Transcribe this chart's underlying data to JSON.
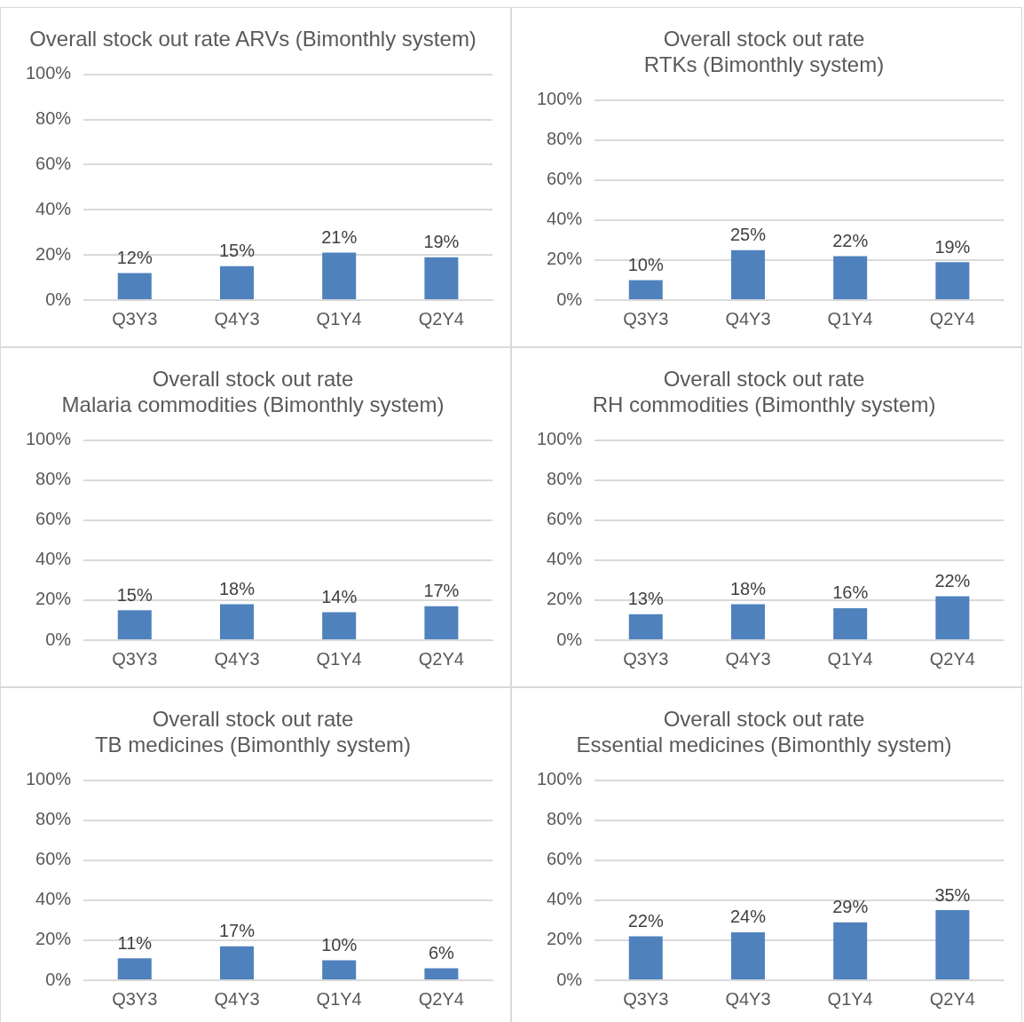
{
  "chart_data": [
    {
      "type": "bar",
      "title": "Overall stock out rate ARVs (Bimonthly system)",
      "categories": [
        "Q3Y3",
        "Q4Y3",
        "Q1Y4",
        "Q2Y4"
      ],
      "values": [
        12,
        15,
        21,
        19
      ],
      "value_labels": [
        "12%",
        "15%",
        "21%",
        "19%"
      ],
      "color": "#4f81bd",
      "ylim": [
        0,
        100
      ],
      "yticks": [
        {
          "value": 0,
          "label": "0%"
        },
        {
          "value": 20,
          "label": "20%"
        },
        {
          "value": 40,
          "label": "40%"
        },
        {
          "value": 60,
          "label": "60%"
        },
        {
          "value": 80,
          "label": "80%"
        },
        {
          "value": 100,
          "label": "100%"
        }
      ],
      "grid": "y",
      "legend": false
    },
    {
      "type": "bar",
      "title": "Overall stock out rate\nRTKs (Bimonthly system)",
      "categories": [
        "Q3Y3",
        "Q4Y3",
        "Q1Y4",
        "Q2Y4"
      ],
      "values": [
        10,
        25,
        22,
        19
      ],
      "value_labels": [
        "10%",
        "25%",
        "22%",
        "19%"
      ],
      "color": "#4f81bd",
      "ylim": [
        0,
        100
      ],
      "yticks": [
        {
          "value": 0,
          "label": "0%"
        },
        {
          "value": 20,
          "label": "20%"
        },
        {
          "value": 40,
          "label": "40%"
        },
        {
          "value": 60,
          "label": "60%"
        },
        {
          "value": 80,
          "label": "80%"
        },
        {
          "value": 100,
          "label": "100%"
        }
      ],
      "grid": "y",
      "legend": false
    },
    {
      "type": "bar",
      "title": "Overall stock out rate\nMalaria commodities (Bimonthly system)",
      "categories": [
        "Q3Y3",
        "Q4Y3",
        "Q1Y4",
        "Q2Y4"
      ],
      "values": [
        15,
        18,
        14,
        17
      ],
      "value_labels": [
        "15%",
        "18%",
        "14%",
        "17%"
      ],
      "color": "#4f81bd",
      "ylim": [
        0,
        100
      ],
      "yticks": [
        {
          "value": 0,
          "label": "0%"
        },
        {
          "value": 20,
          "label": "20%"
        },
        {
          "value": 40,
          "label": "40%"
        },
        {
          "value": 60,
          "label": "60%"
        },
        {
          "value": 80,
          "label": "80%"
        },
        {
          "value": 100,
          "label": "100%"
        }
      ],
      "grid": "y",
      "legend": false
    },
    {
      "type": "bar",
      "title": "Overall stock out rate\nRH commodities (Bimonthly system)",
      "categories": [
        "Q3Y3",
        "Q4Y3",
        "Q1Y4",
        "Q2Y4"
      ],
      "values": [
        13,
        18,
        16,
        22
      ],
      "value_labels": [
        "13%",
        "18%",
        "16%",
        "22%"
      ],
      "color": "#4f81bd",
      "ylim": [
        0,
        100
      ],
      "yticks": [
        {
          "value": 0,
          "label": "0%"
        },
        {
          "value": 20,
          "label": "20%"
        },
        {
          "value": 40,
          "label": "40%"
        },
        {
          "value": 60,
          "label": "60%"
        },
        {
          "value": 80,
          "label": "80%"
        },
        {
          "value": 100,
          "label": "100%"
        }
      ],
      "grid": "y",
      "legend": false
    },
    {
      "type": "bar",
      "title": "Overall stock out rate\nTB medicines (Bimonthly system)",
      "categories": [
        "Q3Y3",
        "Q4Y3",
        "Q1Y4",
        "Q2Y4"
      ],
      "values": [
        11,
        17,
        10,
        6
      ],
      "value_labels": [
        "11%",
        "17%",
        "10%",
        "6%"
      ],
      "color": "#4f81bd",
      "ylim": [
        0,
        100
      ],
      "yticks": [
        {
          "value": 0,
          "label": "0%"
        },
        {
          "value": 20,
          "label": "20%"
        },
        {
          "value": 40,
          "label": "40%"
        },
        {
          "value": 60,
          "label": "60%"
        },
        {
          "value": 80,
          "label": "80%"
        },
        {
          "value": 100,
          "label": "100%"
        }
      ],
      "grid": "y",
      "legend": false
    },
    {
      "type": "bar",
      "title": "Overall stock out rate\nEssential medicines (Bimonthly system)",
      "categories": [
        "Q3Y3",
        "Q4Y3",
        "Q1Y4",
        "Q2Y4"
      ],
      "values": [
        22,
        24,
        29,
        35
      ],
      "value_labels": [
        "22%",
        "24%",
        "29%",
        "35%"
      ],
      "color": "#4f81bd",
      "ylim": [
        0,
        100
      ],
      "yticks": [
        {
          "value": 0,
          "label": "0%"
        },
        {
          "value": 20,
          "label": "20%"
        },
        {
          "value": 40,
          "label": "40%"
        },
        {
          "value": 60,
          "label": "60%"
        },
        {
          "value": 80,
          "label": "80%"
        },
        {
          "value": 100,
          "label": "100%"
        }
      ],
      "grid": "y",
      "legend": false
    }
  ]
}
